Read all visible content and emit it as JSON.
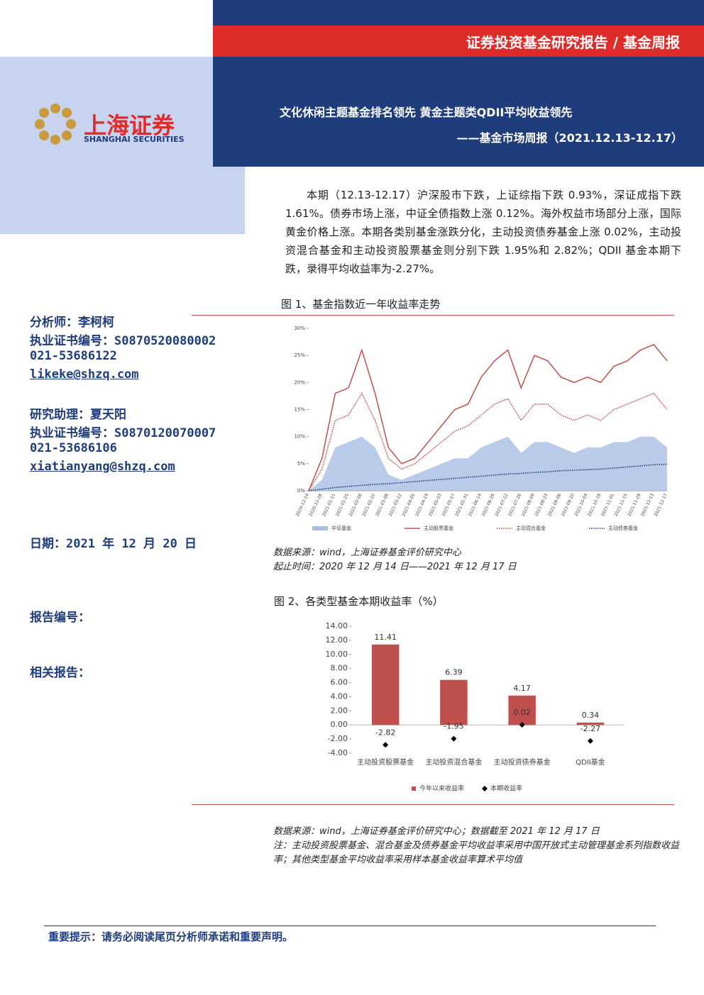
{
  "header": {
    "report_type": "证券投资基金研究报告 / 基金周报",
    "logo_cn": "上海证券",
    "logo_en": "SHANGHAI SECURITIES",
    "title": "文化休闲主题基金排名领先 黄金主题类QDII平均收益领先",
    "subtitle": "——基金市场周报（2021.12.13-12.17）"
  },
  "summary": "本期（12.13-12.17）沪深股市下跌，上证综指下跌 0.93%，深证成指下跌 1.61%。债券市场上涨，中证全债指数上涨 0.12%。海外权益市场部分上涨，国际黄金价格上涨。本期各类别基金涨跌分化，主动投资债券基金上涨 0.02%，主动投资混合基金和主动投资股票基金则分别下跌 1.95%和 2.82%；QDII 基金本期下跌，录得平均收益率为-2.27%。",
  "sidebar": {
    "analyst": "分析师：李柯柯",
    "analyst_cert": "执业证书编号：S0870520080002",
    "analyst_phone": "021-53686122",
    "analyst_email": "likeke@shzq.com",
    "assistant": "研究助理：夏天阳",
    "assistant_cert": "执业证书编号：S0870120070007",
    "assistant_phone": "021-53686106",
    "assistant_email": "xiatianyang@shzq.com",
    "date": "日期：2021 年 12 月 20 日",
    "report_no": "报告编号：",
    "related": "相关报告："
  },
  "footer": "重要提示：请务必阅读尾页分析师承诺和重要声明。",
  "chart_data": [
    {
      "type": "line",
      "title": "图 1、基金指数近一年收益率走势",
      "notes": [
        "数据来源：wind，上海证券基金评价研究中心",
        "起止时间：2020 年 12 月 14 日——2021 年 12 月 17 日"
      ],
      "categories": [
        "2020-12-14",
        "2020-12-28",
        "2021-01-11",
        "2021-01-25",
        "2021-02-08",
        "2021-02-22",
        "2021-03-08",
        "2021-03-22",
        "2021-04-05",
        "2021-04-19",
        "2021-05-03",
        "2021-05-17",
        "2021-05-31",
        "2021-06-14",
        "2021-06-28",
        "2021-07-12",
        "2021-07-26",
        "2021-08-09",
        "2021-08-23",
        "2021-09-06",
        "2021-09-20",
        "2021-10-04",
        "2021-10-18",
        "2021-11-01",
        "2021-11-15",
        "2021-11-29",
        "2021-12-13",
        "2021-12-17"
      ],
      "series": [
        {
          "name": "中证基金",
          "color": "#a9bee4",
          "style": "area",
          "values": [
            0,
            2,
            8,
            9,
            10,
            8,
            3,
            2,
            3,
            4,
            5,
            6,
            6,
            8,
            9,
            10,
            7,
            9,
            9,
            8,
            7,
            8,
            8,
            9,
            9,
            10,
            10,
            8
          ]
        },
        {
          "name": "主动股票基金",
          "color": "#c0504d",
          "style": "solid",
          "values": [
            0,
            6,
            18,
            19,
            26,
            18,
            8,
            5,
            6,
            9,
            12,
            15,
            16,
            21,
            24,
            26,
            19,
            25,
            24,
            21,
            20,
            21,
            20,
            23,
            24,
            26,
            27,
            24
          ]
        },
        {
          "name": "主动混合基金",
          "color": "#c0504d",
          "style": "dotted",
          "values": [
            0,
            4,
            13,
            14,
            18,
            13,
            6,
            4,
            5,
            7,
            9,
            11,
            12,
            14,
            16,
            17,
            13,
            16,
            16,
            14,
            13,
            14,
            13,
            15,
            16,
            17,
            18,
            15
          ]
        },
        {
          "name": "主动债券基金",
          "color": "#1f3d7a",
          "style": "dotted",
          "values": [
            0,
            0.3,
            0.6,
            0.8,
            1,
            1.2,
            1.3,
            1.5,
            1.7,
            1.9,
            2.1,
            2.3,
            2.5,
            2.7,
            2.9,
            3.1,
            3.2,
            3.4,
            3.5,
            3.7,
            3.8,
            3.9,
            4.0,
            4.2,
            4.4,
            4.6,
            4.8,
            4.9
          ]
        }
      ],
      "ylim": [
        0,
        30
      ],
      "yticks": [
        {
          "value": 0,
          "label": "0%"
        },
        {
          "value": 5,
          "label": "5%"
        },
        {
          "value": 10,
          "label": "10%"
        },
        {
          "value": 15,
          "label": "15%"
        },
        {
          "value": 20,
          "label": "20%"
        },
        {
          "value": 25,
          "label": "25%"
        },
        {
          "value": 30,
          "label": "30%"
        }
      ],
      "grid": false
    },
    {
      "type": "bar",
      "title": "图 2、各类型基金本期收益率（%）",
      "notes": [
        "数据来源：wind，上海证券基金评价研究中心；数据截至 2021 年 12 月 17 日",
        "注：主动投资股票基金、混合基金及债券基金平均收益率采用中国开放式主动管理基金系列指数收益率；其他类型基金平均收益率采用样本基金收益率算术平均值"
      ],
      "categories": [
        "主动投资股票基金",
        "主动投资混合基金",
        "主动投资债券基金",
        "QDII基金"
      ],
      "series": [
        {
          "name": "今年以来收益率",
          "color": "#c0504d",
          "marker": "bar",
          "values": [
            11.41,
            6.39,
            4.17,
            0.34
          ]
        },
        {
          "name": "本期收益率",
          "color": "#000000",
          "marker": "diamond",
          "values": [
            -2.82,
            -1.95,
            0.02,
            -2.27
          ]
        }
      ],
      "ylim": [
        -4,
        14
      ],
      "yticks": [
        {
          "value": -4,
          "label": "-4.00"
        },
        {
          "value": -2,
          "label": "-2.00"
        },
        {
          "value": 0,
          "label": "0.00"
        },
        {
          "value": 2,
          "label": "2.00"
        },
        {
          "value": 4,
          "label": "4.00"
        },
        {
          "value": 6,
          "label": "6.00"
        },
        {
          "value": 8,
          "label": "8.00"
        },
        {
          "value": 10,
          "label": "10.00"
        },
        {
          "value": 12,
          "label": "12.00"
        },
        {
          "value": 14,
          "label": "14.00"
        }
      ],
      "grid": false
    }
  ]
}
